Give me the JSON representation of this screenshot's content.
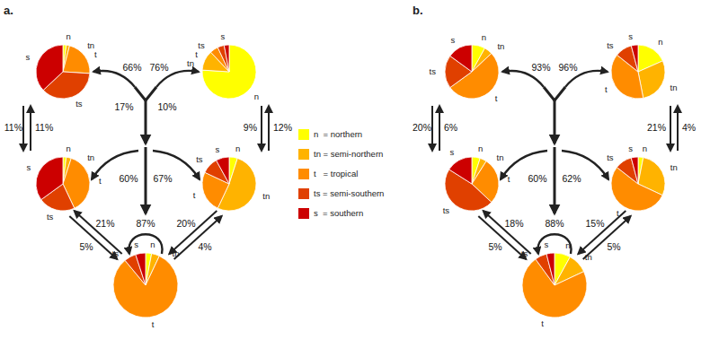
{
  "chart_data": {
    "type": "pie",
    "categories": [
      "n",
      "tn",
      "t",
      "ts",
      "s"
    ],
    "colors": [
      "#FFFF00",
      "#FFB300",
      "#FF8C00",
      "#E04000",
      "#CC0000"
    ],
    "legend_labels": [
      "n  = northern",
      "tn = semi-northern",
      "t   = tropical",
      "ts = semi-southern",
      "s  = southern"
    ],
    "panels": [
      {
        "title": "a.",
        "series": [
          {
            "values": [
              2,
              2,
              22,
              37,
              37
            ]
          },
          {
            "values": [
              76,
              12,
              5,
              4,
              3
            ]
          },
          {
            "values": [
              2,
              3,
              38,
              22,
              35
            ]
          },
          {
            "values": [
              5,
              52,
              25,
              10,
              8
            ]
          },
          {
            "values": [
              3,
              4,
              82,
              6,
              5
            ]
          }
        ],
        "annotations": [
          "66%",
          "76%",
          "17%",
          "10%",
          "11%",
          "11%",
          "9%",
          "12%",
          "60%",
          "67%",
          "21%",
          "87%",
          "20%",
          "5%",
          "4%"
        ]
      },
      {
        "title": "b.",
        "series": [
          {
            "values": [
              8,
              5,
              52,
              20,
              15
            ]
          },
          {
            "values": [
              18,
              28,
              38,
              10,
              4
            ]
          },
          {
            "values": [
              5,
              4,
              28,
              47,
              16
            ]
          },
          {
            "values": [
              3,
              28,
              52,
              10,
              4
            ]
          },
          {
            "values": [
              8,
              10,
              72,
              6,
              4
            ]
          }
        ],
        "annotations": [
          "93%",
          "96%",
          "20%",
          "6%",
          "21%",
          "4%",
          "60%",
          "62%",
          "18%",
          "88%",
          "15%",
          "5%",
          "5%"
        ]
      }
    ]
  }
}
